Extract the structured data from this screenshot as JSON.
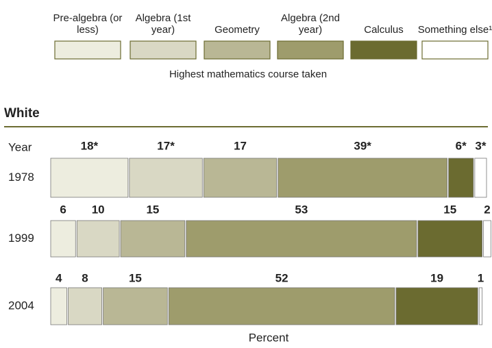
{
  "chart_data": {
    "type": "stacked-bar-horizontal",
    "legend_title": "Highest mathematics course taken",
    "panel_title": "White",
    "category_axis_title": "Year",
    "x_axis_title": "Percent",
    "categories": [
      "1978",
      "1999",
      "2004"
    ],
    "xlim": [
      0,
      100
    ],
    "series": [
      {
        "name": "Pre-algebra (or less)",
        "color": "#ededdf",
        "values": [
          18,
          6,
          4
        ],
        "value_labels": [
          "18*",
          "6",
          "4"
        ]
      },
      {
        "name": "Algebra (1st year)",
        "color": "#d9d8c4",
        "values": [
          17,
          10,
          8
        ],
        "value_labels": [
          "17*",
          "10",
          "8"
        ]
      },
      {
        "name": "Geometry",
        "color": "#b9b795",
        "values": [
          17,
          15,
          15
        ],
        "value_labels": [
          "17",
          "15",
          "15"
        ]
      },
      {
        "name": "Algebra (2nd year)",
        "color": "#9e9c6c",
        "values": [
          39,
          53,
          52
        ],
        "value_labels": [
          "39*",
          "53",
          "52"
        ]
      },
      {
        "name": "Calculus",
        "color": "#6b6b30",
        "values": [
          6,
          15,
          19
        ],
        "value_labels": [
          "6*",
          "15",
          "19"
        ]
      },
      {
        "name": "Something else¹",
        "color": "#ffffff",
        "values": [
          3,
          2,
          1
        ],
        "value_labels": [
          "3*",
          "2",
          "1"
        ]
      }
    ]
  }
}
